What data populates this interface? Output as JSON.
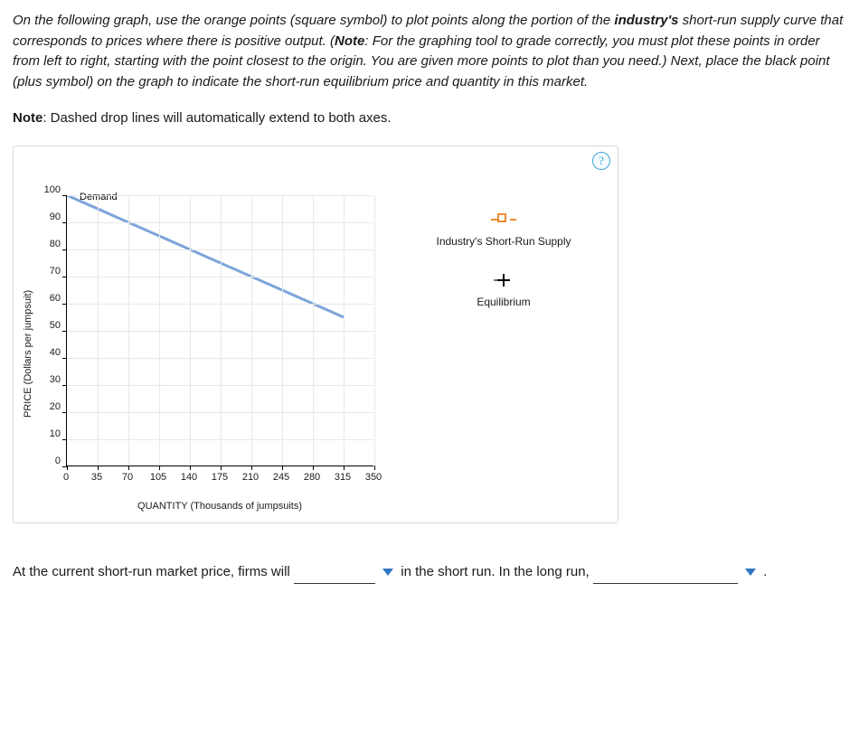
{
  "instructions": {
    "p1_a": "On the following graph, use the orange points (square symbol) to plot points along the portion of the ",
    "p1_b_bold": "industry's",
    "p1_c": " short-run supply curve that corresponds to prices where there is positive output. (",
    "p1_note_bold": "Note",
    "p1_d": ": For the graphing tool to grade correctly, you must plot these points in order from left to right, starting with the point closest to the origin. You are given more points to plot than you need.) Next, place the black point (plus symbol) on the graph to indicate the short-run equilibrium price and quantity in this market."
  },
  "note_line": {
    "bold": "Note",
    "rest": ": Dashed drop lines will automatically extend to both axes."
  },
  "help_symbol": "?",
  "chart": {
    "type": "line",
    "ylabel": "PRICE (Dollars per jumpsuit)",
    "xlabel": "QUANTITY (Thousands of jumpsuits)",
    "xlim": [
      0,
      350
    ],
    "ylim": [
      0,
      100
    ],
    "xticks": [
      0,
      35,
      70,
      105,
      140,
      175,
      210,
      245,
      280,
      315,
      350
    ],
    "yticks": [
      0,
      10,
      20,
      30,
      40,
      50,
      60,
      70,
      80,
      90,
      100
    ],
    "grid_color": "#e8e8e8",
    "background_color": "#ffffff",
    "axis_color": "#000000",
    "tick_fontsize": 11,
    "label_fontsize": 11,
    "demand": {
      "label": "Demand",
      "color": "#7ba4d9",
      "width": 3,
      "points": [
        [
          0,
          100
        ],
        [
          315,
          55
        ]
      ]
    }
  },
  "legend": {
    "supply": {
      "label": "Industry's Short-Run Supply",
      "marker": "square",
      "color": "#ee8c2f"
    },
    "equilibrium": {
      "label": "Equilibrium",
      "marker": "plus",
      "color": "#000000"
    }
  },
  "follow": {
    "t1": "At the current short-run market price, firms will ",
    "t2": " in the short run. In the long run, ",
    "t3": " ."
  }
}
